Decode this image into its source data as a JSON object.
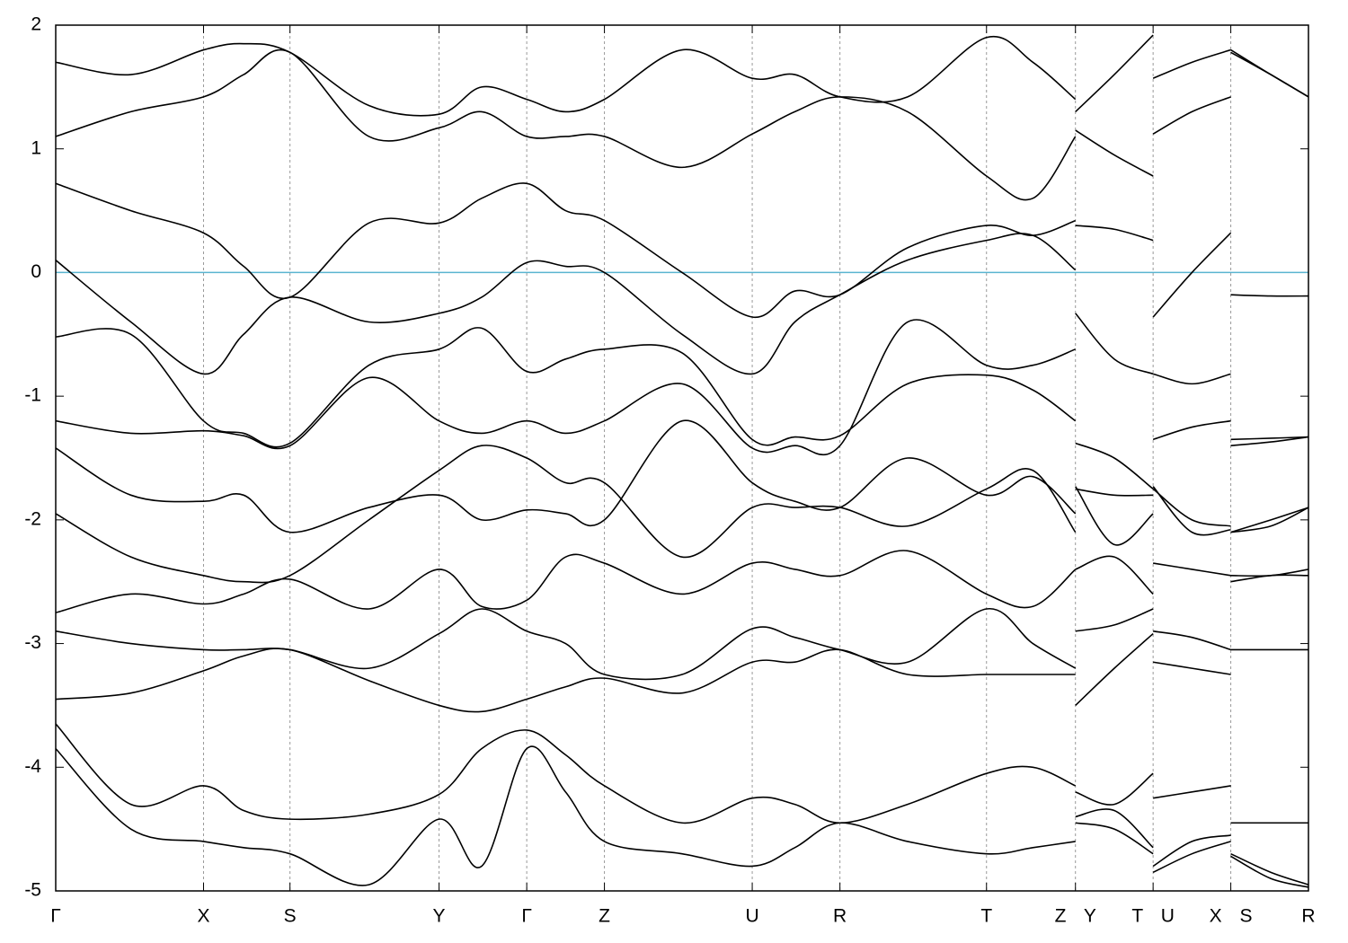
{
  "chart_data": {
    "type": "line",
    "color": "#000000",
    "x": [
      0,
      0.6,
      1.18,
      1.5,
      1.87,
      2.5,
      3.06,
      3.4,
      3.76,
      4.07,
      4.38,
      5.0,
      5.56,
      5.9,
      6.26,
      6.8,
      7.43,
      7.8,
      8.14,
      null,
      8.14,
      8.45,
      8.76,
      null,
      8.76,
      9.07,
      9.38,
      null,
      9.38,
      9.7,
      10
    ],
    "series": [
      {
        "values": [
          1.7,
          1.6,
          1.8,
          1.85,
          1.78,
          1.35,
          1.28,
          1.5,
          1.4,
          1.3,
          1.4,
          1.8,
          1.57,
          1.6,
          1.42,
          1.42,
          1.9,
          1.7,
          1.4,
          null,
          1.3,
          1.6,
          1.92,
          null,
          1.57,
          1.7,
          1.8,
          null,
          1.8,
          1.6,
          1.42
        ]
      },
      {
        "values": [
          1.1,
          1.3,
          1.42,
          1.6,
          1.78,
          1.1,
          1.17,
          1.3,
          1.1,
          1.1,
          1.1,
          0.85,
          1.12,
          1.3,
          1.42,
          1.3,
          0.78,
          0.6,
          1.1,
          null,
          1.15,
          0.95,
          0.78,
          null,
          1.12,
          1.3,
          1.42,
          null,
          1.78,
          1.6,
          1.42
        ]
      },
      {
        "values": [
          0.72,
          0.5,
          0.32,
          0.05,
          -0.2,
          0.4,
          0.4,
          0.6,
          0.72,
          0.5,
          0.42,
          0.0,
          -0.36,
          -0.15,
          -0.18,
          0.2,
          0.38,
          0.3,
          0.42,
          null,
          0.38,
          0.35,
          0.26,
          null,
          -0.36,
          0.0,
          0.32,
          null,
          -0.18,
          -0.19,
          -0.19
        ]
      },
      {
        "values": [
          0.1,
          -0.4,
          -0.82,
          -0.5,
          -0.2,
          -0.4,
          -0.33,
          -0.2,
          0.08,
          0.05,
          0.0,
          -0.5,
          -0.82,
          -0.4,
          -0.18,
          0.1,
          0.26,
          0.3,
          0.02,
          null,
          -0.33,
          -0.7,
          -0.82,
          null,
          -0.82,
          -0.9,
          -0.82,
          null,
          -1.35,
          -1.34,
          -1.33
        ]
      },
      {
        "values": [
          -0.52,
          -0.5,
          -1.2,
          -1.3,
          -1.38,
          -0.75,
          -0.62,
          -0.45,
          -0.8,
          -0.7,
          -0.62,
          -0.65,
          -1.35,
          -1.33,
          -1.32,
          -0.9,
          -0.83,
          -0.95,
          -1.2,
          null,
          -1.38,
          -1.5,
          -1.75,
          null,
          -1.35,
          -1.25,
          -1.2,
          null,
          -1.4,
          -1.37,
          -1.33
        ]
      },
      {
        "values": [
          -1.2,
          -1.3,
          -1.28,
          -1.32,
          -1.4,
          -0.85,
          -1.2,
          -1.3,
          -1.2,
          -1.3,
          -1.2,
          -0.9,
          -1.42,
          -1.4,
          -1.4,
          -0.4,
          -0.75,
          -0.75,
          -0.62,
          null,
          -1.73,
          -2.2,
          -1.95,
          null,
          -1.73,
          -2.1,
          -2.08,
          null,
          -2.1,
          -2.0,
          -1.9
        ]
      },
      {
        "values": [
          -1.42,
          -1.8,
          -1.85,
          -1.8,
          -2.1,
          -1.9,
          -1.8,
          -2.0,
          -1.92,
          -1.95,
          -2.0,
          -1.2,
          -1.7,
          -1.85,
          -1.9,
          -1.5,
          -1.8,
          -1.65,
          -1.95,
          null,
          -1.75,
          -1.8,
          -1.8,
          null,
          -1.75,
          -2.0,
          -2.05,
          null,
          -2.1,
          -2.05,
          -1.9
        ]
      },
      {
        "values": [
          -1.95,
          -2.3,
          -2.45,
          -2.5,
          -2.45,
          -2.0,
          -1.6,
          -1.4,
          -1.5,
          -1.7,
          -1.7,
          -2.3,
          -1.9,
          -1.9,
          -1.9,
          -2.05,
          -1.75,
          -1.6,
          -2.1,
          null,
          -2.4,
          -2.3,
          -2.6,
          null,
          -2.35,
          -2.4,
          -2.45,
          null,
          -2.45,
          -2.45,
          -2.4
        ]
      },
      {
        "values": [
          -2.75,
          -2.6,
          -2.68,
          -2.6,
          -2.48,
          -2.72,
          -2.4,
          -2.7,
          -2.65,
          -2.3,
          -2.35,
          -2.6,
          -2.35,
          -2.4,
          -2.45,
          -2.25,
          -2.6,
          -2.7,
          -2.4,
          null,
          -2.9,
          -2.85,
          -2.72,
          null,
          -2.9,
          -2.95,
          -3.05,
          null,
          -2.5,
          -2.45,
          -2.45
        ]
      },
      {
        "values": [
          -2.9,
          -3.0,
          -3.05,
          -3.05,
          -3.05,
          -3.2,
          -2.92,
          -2.72,
          -2.9,
          -3.0,
          -3.25,
          -3.25,
          -2.88,
          -2.95,
          -3.05,
          -3.15,
          -2.72,
          -3.0,
          -3.2,
          null,
          -3.5,
          -3.2,
          -2.92,
          null,
          -3.15,
          -3.2,
          -3.25,
          null,
          -3.05,
          -3.05,
          -3.05
        ]
      },
      {
        "values": [
          -3.45,
          -3.4,
          -3.22,
          -3.1,
          -3.05,
          -3.3,
          -3.5,
          -3.55,
          -3.45,
          -3.35,
          -3.28,
          -3.4,
          -3.15,
          -3.15,
          -3.05,
          -3.25,
          -3.25,
          -3.25,
          -3.25,
          null,
          -4.2,
          -4.3,
          -4.05,
          null,
          -4.25,
          -4.2,
          -4.15,
          null,
          -4.45,
          -4.45,
          -4.45
        ]
      },
      {
        "values": [
          -3.65,
          -4.3,
          -4.15,
          -4.35,
          -4.42,
          -4.38,
          -4.22,
          -3.85,
          -3.7,
          -3.9,
          -4.15,
          -4.45,
          -4.25,
          -4.3,
          -4.45,
          -4.3,
          -4.05,
          -4.0,
          -4.15,
          null,
          -4.4,
          -4.35,
          -4.65,
          null,
          -4.8,
          -4.6,
          -4.55,
          null,
          -4.7,
          -4.85,
          -4.95
        ]
      },
      {
        "values": [
          -3.85,
          -4.5,
          -4.6,
          -4.65,
          -4.7,
          -4.95,
          -4.42,
          -4.8,
          -3.85,
          -4.2,
          -4.6,
          -4.7,
          -4.8,
          -4.65,
          -4.45,
          -4.6,
          -4.7,
          -4.65,
          -4.6,
          null,
          -4.45,
          -4.5,
          -4.7,
          null,
          -4.85,
          -4.7,
          -4.6,
          null,
          -4.72,
          -4.9,
          -4.97
        ]
      }
    ],
    "xlim": [
      0,
      10
    ],
    "ylim": [
      -5,
      2
    ],
    "yticks": [
      -5,
      -4,
      -3,
      -2,
      -1,
      0,
      1,
      2
    ],
    "xticks": [
      {
        "value": 0,
        "label": "Γ"
      },
      {
        "value": 1.18,
        "label": "X"
      },
      {
        "value": 1.87,
        "label": "S"
      },
      {
        "value": 3.06,
        "label": "Y"
      },
      {
        "value": 3.76,
        "label": "Γ"
      },
      {
        "value": 4.38,
        "label": "Z"
      },
      {
        "value": 5.56,
        "label": "U"
      },
      {
        "value": 6.26,
        "label": "R"
      },
      {
        "value": 7.43,
        "label": "T"
      },
      {
        "value": 8.14,
        "label": "Z Y"
      },
      {
        "value": 8.76,
        "label": "T U"
      },
      {
        "value": 9.38,
        "label": "X S"
      },
      {
        "value": 10,
        "label": "R"
      }
    ],
    "grid": true,
    "hline": {
      "value": 0,
      "color": "#5ab4d0"
    }
  }
}
